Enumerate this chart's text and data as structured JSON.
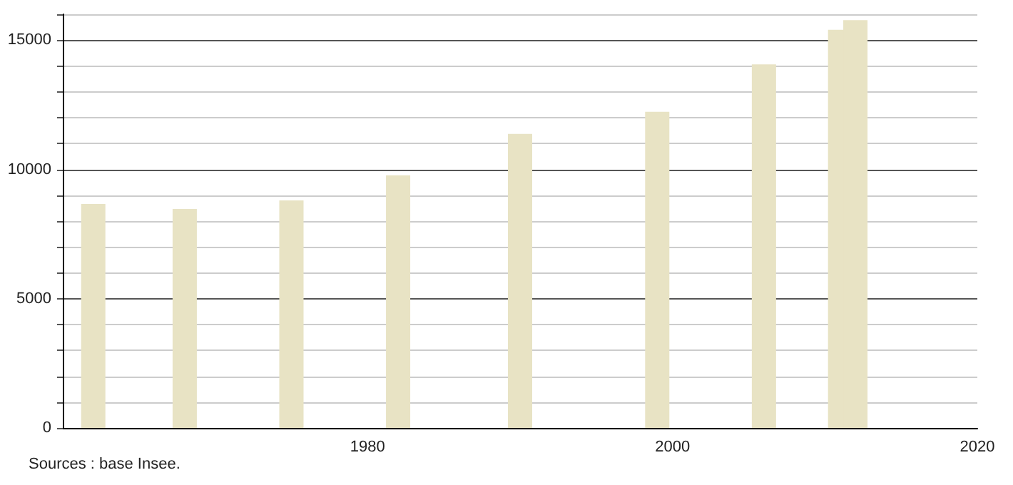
{
  "chart_data": {
    "type": "bar",
    "x": [
      1962,
      1968,
      1975,
      1982,
      1990,
      1999,
      2006,
      2011,
      2012
    ],
    "values": [
      8660,
      8470,
      8800,
      9770,
      11370,
      12230,
      14060,
      15400,
      15770
    ],
    "color": "#e8e3c4",
    "xlim": [
      1960,
      2020
    ],
    "xticks": [
      1980,
      2000,
      2020
    ],
    "ylim": [
      0,
      16000
    ],
    "yticks": [
      0,
      {
        "value": 1000,
        "label": null
      },
      {
        "value": 2000,
        "label": null
      },
      {
        "value": 3000,
        "label": null
      },
      {
        "value": 4000,
        "label": null
      },
      5000,
      {
        "value": 6000,
        "label": null
      },
      {
        "value": 7000,
        "label": null
      },
      {
        "value": 8000,
        "label": null
      },
      {
        "value": 9000,
        "label": null
      },
      10000,
      {
        "value": 11000,
        "label": null
      },
      {
        "value": 12000,
        "label": null
      },
      {
        "value": 13000,
        "label": null
      },
      {
        "value": 14000,
        "label": null
      },
      15000,
      {
        "value": 16000,
        "label": null
      }
    ],
    "grid": "y",
    "annotations": [
      "Sources : base Insee."
    ]
  }
}
